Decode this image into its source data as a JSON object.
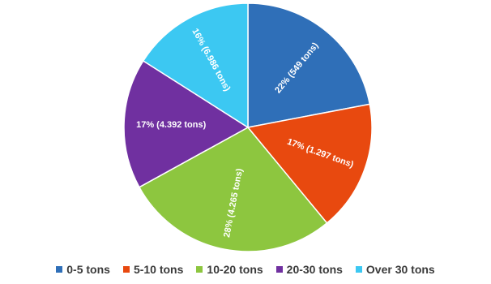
{
  "chart_data": {
    "type": "pie",
    "title": "",
    "legend_position": "bottom",
    "start_angle_deg": 0,
    "direction": "clockwise",
    "slices": [
      {
        "name": "0-5 tons",
        "percent": 22,
        "label": "22% (549 tons)",
        "color": "#2F6FB8"
      },
      {
        "name": "5-10 tons",
        "percent": 17,
        "label": "17% (1.297 tons)",
        "color": "#E8490F"
      },
      {
        "name": "10-20 tons",
        "percent": 28,
        "label": "28% (4.265 tons)",
        "color": "#8DC63F"
      },
      {
        "name": "20-30 tons",
        "percent": 17,
        "label": "17% (4.392 tons)",
        "color": "#7030A0"
      },
      {
        "name": "Over 30 tons",
        "percent": 16,
        "label": "16% (6.986 tons)",
        "color": "#3CC8F2"
      }
    ]
  }
}
